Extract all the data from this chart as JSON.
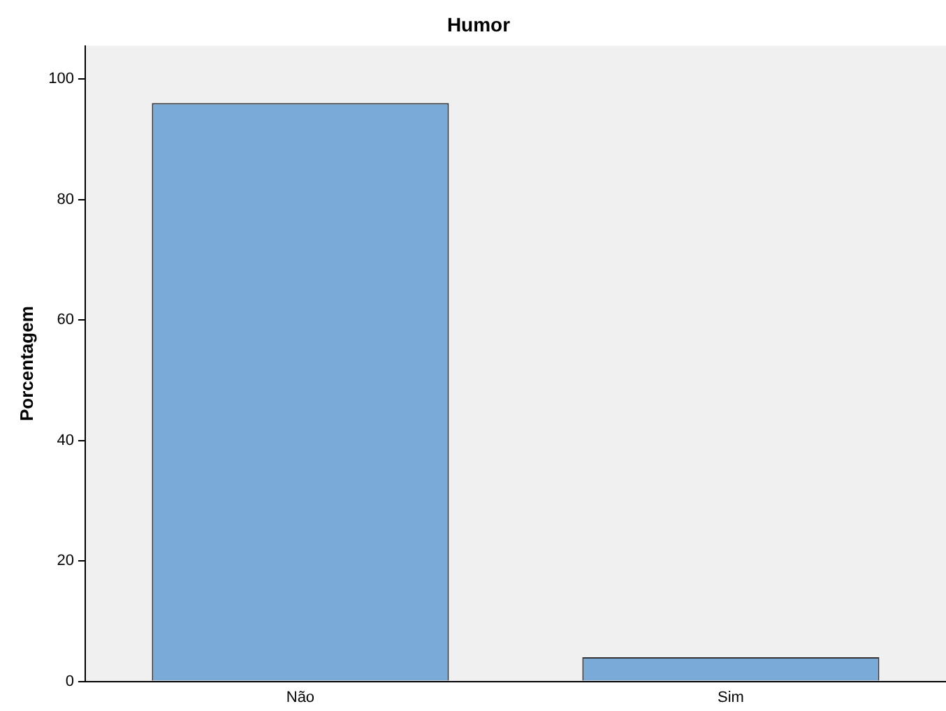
{
  "chart_data": {
    "type": "bar",
    "title": "Humor",
    "ylabel": "Porcentagem",
    "categories": [
      "Não",
      "Sim"
    ],
    "values": [
      96,
      4
    ],
    "color": "#7aaad8",
    "ylim": [
      0,
      105.5
    ],
    "yticks": [
      0,
      20,
      40,
      60,
      80,
      100
    ],
    "grid": false,
    "legend": false
  }
}
